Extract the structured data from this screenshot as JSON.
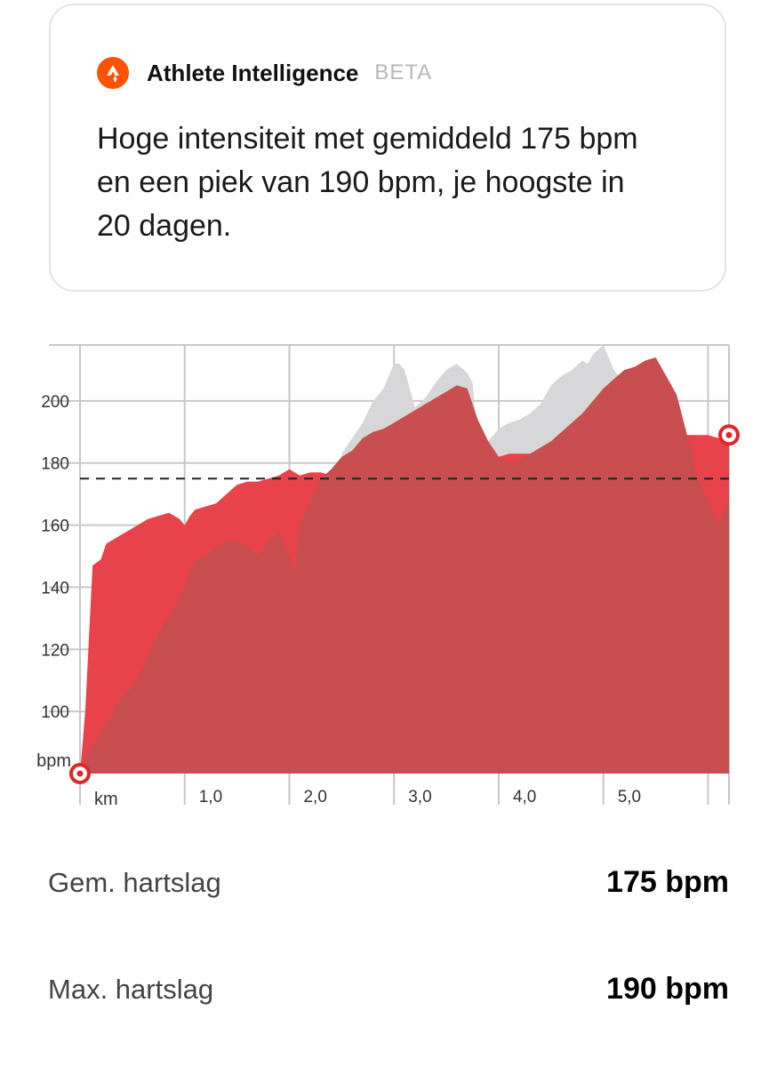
{
  "ai_card": {
    "title": "Athlete Intelligence",
    "badge": "BETA",
    "text": "Hoge intensiteit met gemiddeld 175 bpm en een piek van 190 bpm, je hoogste in 20 dagen.",
    "logo_icon": "strava-chevron-icon",
    "logo_color": "#fc5200"
  },
  "colors": {
    "hr_fill": "#e8434a",
    "elev_fill": "#c84e4f",
    "pace_fill": "#d7d7d9",
    "avg_line": "#222222",
    "grid": "#c8c8cc",
    "marker": "#e3242b"
  },
  "chart_data": {
    "type": "area",
    "xlabel": "km",
    "ylabel": "bpm",
    "x_ticks": [
      "1,0",
      "2,0",
      "3,0",
      "4,0",
      "5,0"
    ],
    "y_ticks": [
      100,
      120,
      140,
      160,
      180,
      200
    ],
    "xlim": [
      0,
      6.2
    ],
    "ylim": [
      80,
      218
    ],
    "avg_hr": 175,
    "max_hr": 190,
    "series": [
      {
        "x": [
          0,
          0.05,
          0.12,
          0.2,
          0.25,
          0.3,
          0.4,
          0.5,
          0.55,
          0.65,
          0.75,
          0.85,
          0.95,
          1.0,
          1.05,
          1.1,
          1.2,
          1.3,
          1.4,
          1.5,
          1.6,
          1.7,
          1.8,
          1.9,
          2.0,
          2.05,
          2.1,
          2.2,
          2.3,
          2.4,
          2.5,
          2.6,
          2.7,
          2.8,
          2.9,
          3.0,
          3.1,
          3.2,
          3.3,
          3.4,
          3.5,
          3.6,
          3.7,
          3.8,
          3.9,
          4.0,
          4.1,
          4.2,
          4.3,
          4.4,
          4.5,
          4.6,
          4.7,
          4.8,
          4.9,
          5.0,
          5.1,
          5.2,
          5.3,
          5.4,
          5.5,
          5.6,
          5.7,
          5.8,
          5.9,
          6.0,
          6.1,
          6.2
        ],
        "values": [
          80,
          100,
          147,
          149,
          154,
          155,
          157,
          159,
          160,
          162,
          163,
          164,
          162,
          160,
          163,
          165,
          166,
          167,
          170,
          173,
          174,
          174,
          175,
          176,
          178,
          177,
          176,
          177,
          177,
          176,
          177,
          178,
          178,
          179,
          180,
          180,
          181,
          181,
          180,
          181,
          181,
          182,
          181,
          182,
          182,
          182,
          183,
          183,
          183,
          183,
          182,
          182,
          184,
          185,
          186,
          187,
          185,
          185,
          184,
          184,
          183,
          184,
          185,
          189,
          189,
          189,
          188,
          189
        ]
      },
      {
        "x": [
          0,
          0.05,
          0.1,
          0.15,
          0.2,
          0.25,
          0.3,
          0.35,
          0.4,
          0.5,
          0.6,
          0.7,
          0.8,
          0.9,
          0.95,
          1.0,
          1.05,
          1.1,
          1.2,
          1.3,
          1.4,
          1.5,
          1.6,
          1.7,
          1.8,
          1.9,
          2.0,
          2.05,
          2.1,
          2.2,
          2.3,
          2.4,
          2.5,
          2.6,
          2.7,
          2.8,
          2.9,
          3.0,
          3.1,
          3.2,
          3.3,
          3.4,
          3.5,
          3.6,
          3.7,
          3.8,
          3.9,
          4.0,
          4.1,
          4.2,
          4.3,
          4.4,
          4.5,
          4.6,
          4.7,
          4.8,
          4.9,
          5.0,
          5.1,
          5.2,
          5.3,
          5.4,
          5.5,
          5.6,
          5.7,
          5.8,
          5.9,
          6.0,
          6.1,
          6.2
        ],
        "values": [
          80,
          85,
          88,
          90,
          93,
          96,
          99,
          102,
          105,
          108,
          114,
          122,
          128,
          133,
          137,
          140,
          145,
          148,
          150,
          153,
          155,
          155,
          153,
          150,
          155,
          158,
          150,
          145,
          160,
          168,
          175,
          178,
          182,
          184,
          188,
          190,
          191,
          193,
          195,
          197,
          199,
          201,
          203,
          205,
          204,
          194,
          187,
          182,
          180,
          181,
          183,
          185,
          187,
          190,
          193,
          196,
          200,
          204,
          207,
          210,
          211,
          213,
          214,
          208,
          202,
          189,
          175,
          168,
          160,
          168
        ]
      },
      {
        "x": [
          0,
          0.5,
          1.0,
          1.5,
          1.9,
          2.2,
          2.4,
          2.5,
          2.6,
          2.7,
          2.8,
          2.9,
          2.95,
          3.0,
          3.05,
          3.1,
          3.2,
          3.3,
          3.4,
          3.5,
          3.6,
          3.7,
          3.75,
          3.8,
          3.9,
          4.0,
          4.1,
          4.2,
          4.3,
          4.4,
          4.5,
          4.6,
          4.7,
          4.8,
          4.85,
          4.9,
          5.0,
          5.1,
          5.2,
          5.3,
          5.4,
          5.5,
          5.6,
          5.7,
          5.8,
          5.9,
          6.0,
          6.1,
          6.2
        ],
        "values": [
          80,
          80,
          80,
          80,
          80,
          80,
          80,
          183,
          188,
          193,
          200,
          204,
          208,
          212,
          212,
          210,
          198,
          201,
          206,
          210,
          212,
          209,
          206,
          186,
          187,
          191,
          193,
          194,
          196,
          199,
          205,
          208,
          210,
          213,
          212,
          215,
          218,
          210,
          206,
          202,
          192,
          188,
          185,
          180,
          176,
          172,
          168,
          165,
          162
        ]
      }
    ]
  },
  "stats": [
    {
      "label": "Gem. hartslag",
      "value": "175 bpm"
    },
    {
      "label": "Max. hartslag",
      "value": "190 bpm"
    }
  ]
}
